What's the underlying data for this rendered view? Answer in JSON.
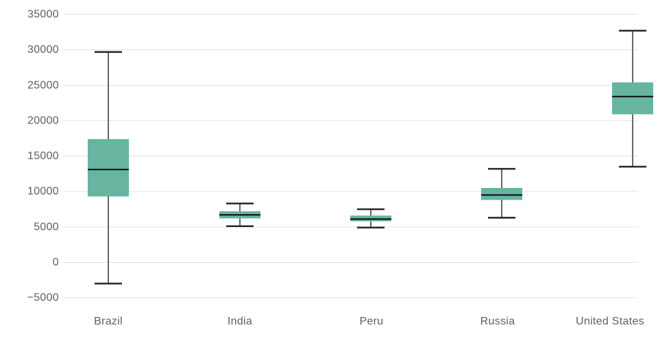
{
  "chart_data": {
    "type": "boxplot",
    "title": "",
    "xlabel": "",
    "ylabel": "",
    "categories": [
      "Brazil",
      "India",
      "Peru",
      "Russia",
      "United States"
    ],
    "series": [
      {
        "category": "Brazil",
        "min": -3000,
        "q1": 9300,
        "median": 13100,
        "q3": 17400,
        "max": 29700
      },
      {
        "category": "India",
        "min": 5100,
        "q1": 6200,
        "median": 6700,
        "q3": 7200,
        "max": 8300
      },
      {
        "category": "Peru",
        "min": 4900,
        "q1": 5800,
        "median": 6100,
        "q3": 6600,
        "max": 7500
      },
      {
        "category": "Russia",
        "min": 6300,
        "q1": 8800,
        "median": 9500,
        "q3": 10500,
        "max": 13200
      },
      {
        "category": "United States",
        "min": 13500,
        "q1": 20900,
        "median": 23400,
        "q3": 25400,
        "max": 32700
      }
    ],
    "y_axis": {
      "min": -5000,
      "max": 35000,
      "step": 5000,
      "tick_labels": [
        "35000",
        "30000",
        "25000",
        "20000",
        "15000",
        "10000",
        "5000",
        "0",
        "−5000"
      ]
    },
    "grid": "horizontal-only",
    "legend": "none",
    "colors": {
      "box_fill": "#67b4a1",
      "median_line": "#0a0a0a",
      "whisker_stem": "#646464",
      "whisker_cap": "#262626",
      "gridline": "#e2e1dd",
      "axis_text": "#5d5e60",
      "background": "#ffffff"
    }
  }
}
